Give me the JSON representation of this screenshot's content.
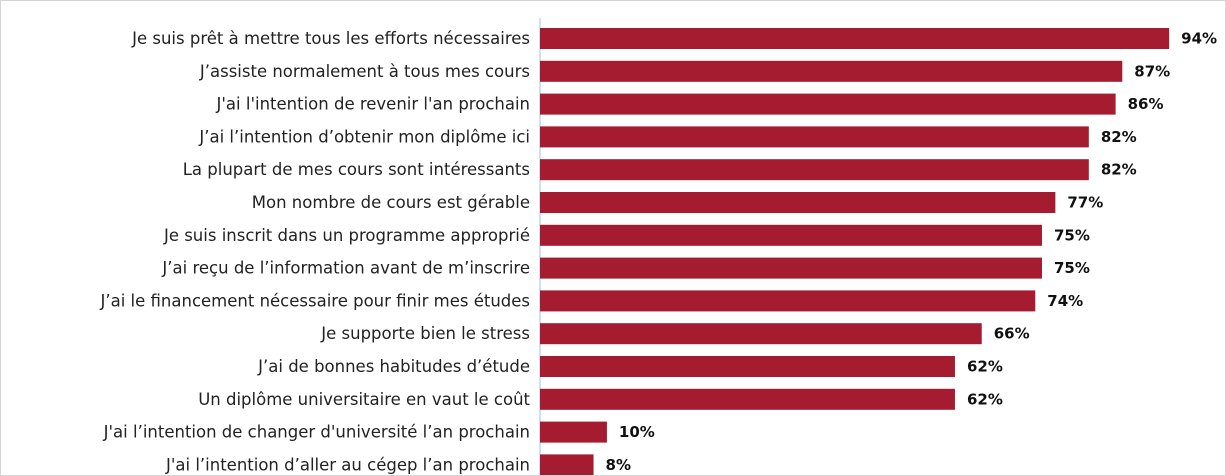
{
  "chart_data": {
    "type": "bar",
    "orientation": "horizontal",
    "categories": [
      "Je suis prêt à mettre tous les efforts nécessaires",
      "J’assiste normalement à tous mes cours",
      "J'ai l'intention de revenir l'an prochain",
      "J’ai l’intention d’obtenir mon diplôme ici",
      "La plupart de mes cours sont intéressants",
      "Mon nombre de cours est gérable",
      "Je suis inscrit dans un programme approprié",
      "J’ai reçu de l’information avant de m’inscrire",
      "J’ai le financement nécessaire pour finir mes études",
      "Je supporte bien le stress",
      "J’ai de bonnes habitudes d’étude",
      "Un diplôme universitaire en vaut le coût",
      "J'ai l’intention de changer d'université l’an prochain",
      "J'ai l’intention d’aller au cégep l’an prochain"
    ],
    "values": [
      94,
      87,
      86,
      82,
      82,
      77,
      75,
      75,
      74,
      66,
      62,
      62,
      10,
      8
    ],
    "value_labels": [
      "94%",
      "87%",
      "86%",
      "82%",
      "82%",
      "77%",
      "75%",
      "75%",
      "74%",
      "66%",
      "62%",
      "62%",
      "10%",
      "8%"
    ],
    "unit": "%",
    "xlim": [
      0,
      100
    ],
    "title": "",
    "xlabel": "",
    "ylabel": "",
    "grid": false,
    "legend": "none",
    "colors": {
      "bar": "#A51C30",
      "axis": "#BDD7EE"
    }
  }
}
